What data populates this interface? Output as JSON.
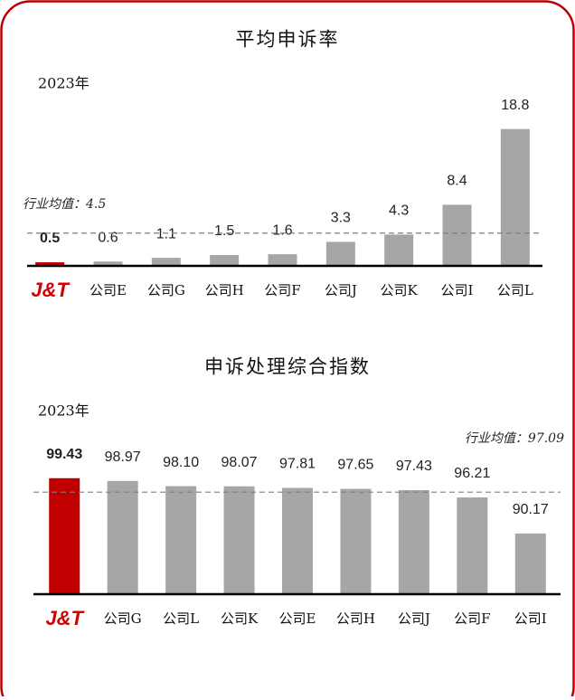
{
  "chart_data": [
    {
      "type": "bar",
      "title": "平均申诉率",
      "subtitle": "2023年",
      "categories": [
        "J&T",
        "公司E",
        "公司G",
        "公司H",
        "公司F",
        "公司J",
        "公司K",
        "公司I",
        "公司L"
      ],
      "values": [
        0.5,
        0.6,
        1.1,
        1.5,
        1.6,
        3.3,
        4.3,
        8.4,
        18.8
      ],
      "colors": [
        "#c00000",
        "#a6a6a6",
        "#a6a6a6",
        "#a6a6a6",
        "#a6a6a6",
        "#a6a6a6",
        "#a6a6a6",
        "#a6a6a6",
        "#a6a6a6"
      ],
      "ylim": [
        0,
        20
      ],
      "reference_line": {
        "value": 4.5,
        "label": "行业均值：4.5"
      }
    },
    {
      "type": "bar",
      "title": "申诉处理综合指数",
      "subtitle": "2023年",
      "categories": [
        "J&T",
        "公司G",
        "公司L",
        "公司K",
        "公司E",
        "公司H",
        "公司J",
        "公司F",
        "公司I"
      ],
      "values": [
        99.43,
        98.97,
        98.1,
        98.07,
        97.81,
        97.65,
        97.43,
        96.21,
        90.17
      ],
      "value_labels": [
        "99.43",
        "98.97",
        "98.10",
        "98.07",
        "97.81",
        "97.65",
        "97.43",
        "96.21",
        "90.17"
      ],
      "colors": [
        "#c00000",
        "#a6a6a6",
        "#a6a6a6",
        "#a6a6a6",
        "#a6a6a6",
        "#a6a6a6",
        "#a6a6a6",
        "#a6a6a6",
        "#a6a6a6"
      ],
      "ylim": [
        80,
        100
      ],
      "reference_line": {
        "value": 97.09,
        "label": "行业均值：97.09"
      }
    }
  ]
}
